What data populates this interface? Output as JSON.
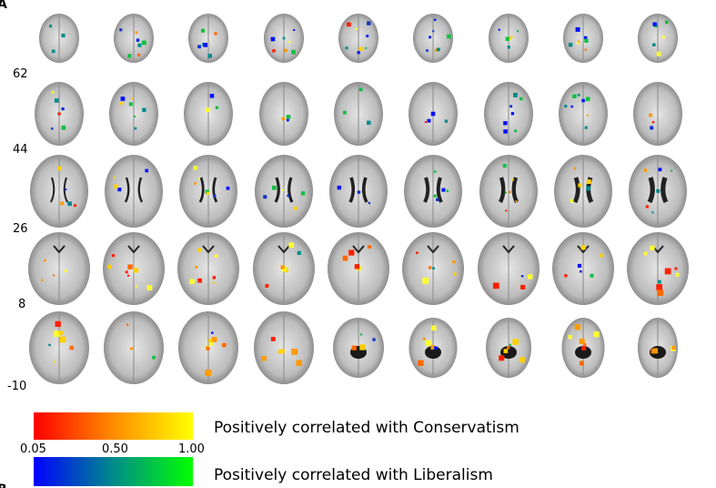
{
  "panel_labels": [
    "A",
    "B"
  ],
  "slice_labels": [
    "62",
    "44",
    "26",
    "8",
    "-10"
  ],
  "colorbar": {
    "ticks": [
      "0.05",
      "0.50",
      "1.00"
    ]
  },
  "legend": [
    "Positively correlated with Conservatism",
    "Positively correlated with Liberalism"
  ]
}
